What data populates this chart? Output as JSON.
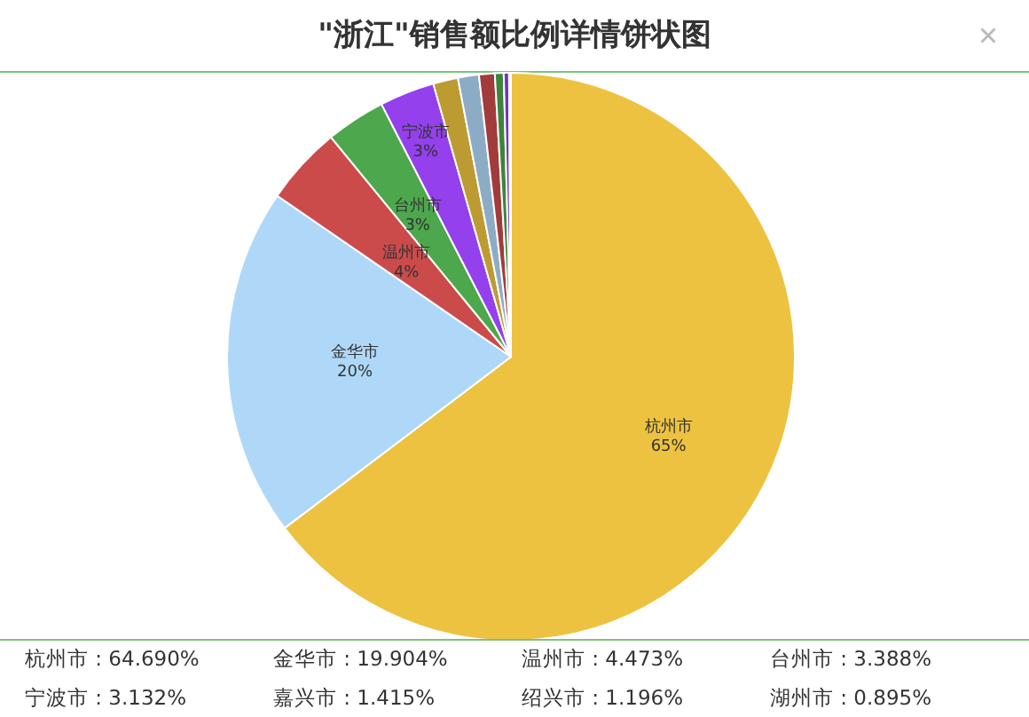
{
  "chart_data": {
    "type": "pie",
    "title": "\"浙江\"销售额比例详情饼状图",
    "categories": [
      "杭州市",
      "金华市",
      "温州市",
      "台州市",
      "宁波市",
      null,
      null,
      null,
      null,
      null,
      null
    ],
    "values": [
      64.69,
      19.904,
      4.473,
      3.388,
      3.132,
      1.415,
      1.196,
      0.895,
      0.5,
      0.3,
      0.107
    ],
    "colors": [
      "#edc240",
      "#afd8f8",
      "#cb4b4b",
      "#4da74d",
      "#9440ed",
      "#bd9b33",
      "#8cacc6",
      "#a23c3c",
      "#3d853d",
      "#7633bd",
      "#8cbfe6"
    ],
    "value_labels": [
      "65%",
      "20%",
      "4%",
      "3%",
      "3%",
      null,
      null,
      null,
      null,
      null,
      null
    ],
    "annotations": [
      "杭州市 : 64.690%",
      "金华市 : 19.904%",
      "温州市 : 4.473%",
      "台州市 : 3.388%",
      "宁波市 : 3.132%",
      "嘉兴市 : 1.415%",
      "绍兴市 : 1.196%",
      "湖州市 : 0.895%"
    ]
  }
}
